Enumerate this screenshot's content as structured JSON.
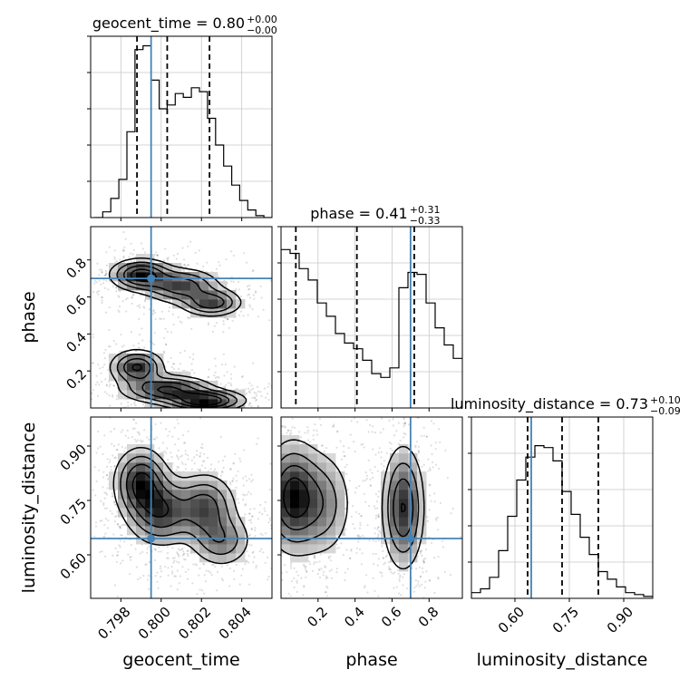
{
  "chart_data": {
    "type": "corner",
    "parameters": [
      {
        "name": "geocent_time",
        "label": "geocent_time",
        "range": [
          0.7965,
          0.8055
        ],
        "ticks": [
          0.798,
          0.8,
          0.802,
          0.804
        ],
        "tick_labels": [
          "0.798",
          "0.800",
          "0.802",
          "0.804"
        ],
        "truth": 0.7995,
        "quantiles": [
          0.7988,
          0.8003,
          0.8024
        ]
      },
      {
        "name": "phase",
        "label": "phase",
        "range": [
          0.0,
          0.98
        ],
        "ticks": [
          0.2,
          0.4,
          0.6,
          0.8
        ],
        "tick_labels": [
          "0.2",
          "0.4",
          "0.6",
          "0.8"
        ],
        "truth": 0.7,
        "quantiles": [
          0.08,
          0.41,
          0.72
        ]
      },
      {
        "name": "luminosity_distance",
        "label": "luminosity_distance",
        "range": [
          0.48,
          0.98
        ],
        "ticks": [
          0.6,
          0.75,
          0.9
        ],
        "tick_labels": [
          "0.60",
          "0.75",
          "0.90"
        ],
        "truth": 0.645,
        "quantiles": [
          0.635,
          0.73,
          0.83
        ]
      }
    ],
    "titles": [
      {
        "text": "geocent_time = 0.80",
        "sup": "+0.00",
        "sub": "−0.00"
      },
      {
        "text": "phase = 0.41",
        "sup": "+0.31",
        "sub": "−0.33"
      },
      {
        "text": "luminosity_distance = 0.73",
        "sup": "+0.10",
        "sub": "−0.09"
      }
    ],
    "histograms": [
      {
        "param": "geocent_time",
        "bin_start": 0.7967,
        "bin_width": 0.0004,
        "values": [
          0.0,
          0.03,
          0.1,
          0.2,
          0.45,
          0.88,
          0.9,
          0.72,
          0.57,
          0.59,
          0.65,
          0.63,
          0.68,
          0.66,
          0.52,
          0.38,
          0.27,
          0.17,
          0.09,
          0.04,
          0.01,
          0.0
        ]
      },
      {
        "param": "phase",
        "bin_start": 0.0,
        "bin_width": 0.049,
        "values": [
          0.83,
          0.81,
          0.73,
          0.67,
          0.55,
          0.48,
          0.39,
          0.34,
          0.31,
          0.25,
          0.18,
          0.16,
          0.21,
          0.63,
          0.71,
          0.7,
          0.55,
          0.42,
          0.33,
          0.26
        ]
      },
      {
        "param": "luminosity_distance",
        "bin_start": 0.48,
        "bin_width": 0.025,
        "values": [
          0.03,
          0.05,
          0.11,
          0.25,
          0.43,
          0.62,
          0.74,
          0.8,
          0.79,
          0.72,
          0.56,
          0.44,
          0.32,
          0.23,
          0.14,
          0.1,
          0.06,
          0.03,
          0.02,
          0.01
        ]
      }
    ],
    "hist2d": [
      {
        "x": "geocent_time",
        "y": "phase",
        "components": [
          {
            "x": 0.799,
            "y": 0.72,
            "sx": 0.0008,
            "sy": 0.045,
            "w": 0.8
          },
          {
            "x": 0.801,
            "y": 0.66,
            "sx": 0.001,
            "sy": 0.05,
            "w": 0.6
          },
          {
            "x": 0.8025,
            "y": 0.57,
            "sx": 0.0008,
            "sy": 0.04,
            "w": 0.6
          },
          {
            "x": 0.7988,
            "y": 0.22,
            "sx": 0.0007,
            "sy": 0.05,
            "w": 0.7
          },
          {
            "x": 0.8003,
            "y": 0.1,
            "sx": 0.0012,
            "sy": 0.04,
            "w": 0.7
          },
          {
            "x": 0.8022,
            "y": 0.04,
            "sx": 0.001,
            "sy": 0.03,
            "w": 0.9
          }
        ]
      },
      {
        "x": "geocent_time",
        "y": "luminosity_distance",
        "components": [
          {
            "x": 0.799,
            "y": 0.8,
            "sx": 0.0007,
            "sy": 0.05,
            "w": 0.9
          },
          {
            "x": 0.8,
            "y": 0.72,
            "sx": 0.0009,
            "sy": 0.05,
            "w": 0.8
          },
          {
            "x": 0.8022,
            "y": 0.73,
            "sx": 0.0008,
            "sy": 0.05,
            "w": 0.7
          },
          {
            "x": 0.803,
            "y": 0.64,
            "sx": 0.0008,
            "sy": 0.04,
            "w": 0.5
          }
        ]
      },
      {
        "x": "phase",
        "y": "luminosity_distance",
        "components": [
          {
            "x": 0.06,
            "y": 0.76,
            "sx": 0.08,
            "sy": 0.08,
            "w": 1.0
          },
          {
            "x": 0.22,
            "y": 0.74,
            "sx": 0.09,
            "sy": 0.08,
            "w": 0.5
          },
          {
            "x": 0.66,
            "y": 0.73,
            "sx": 0.06,
            "sy": 0.09,
            "w": 0.9
          }
        ]
      }
    ],
    "quantile_lines": "dashed",
    "truth_color": "#4682b4",
    "grid": true
  }
}
